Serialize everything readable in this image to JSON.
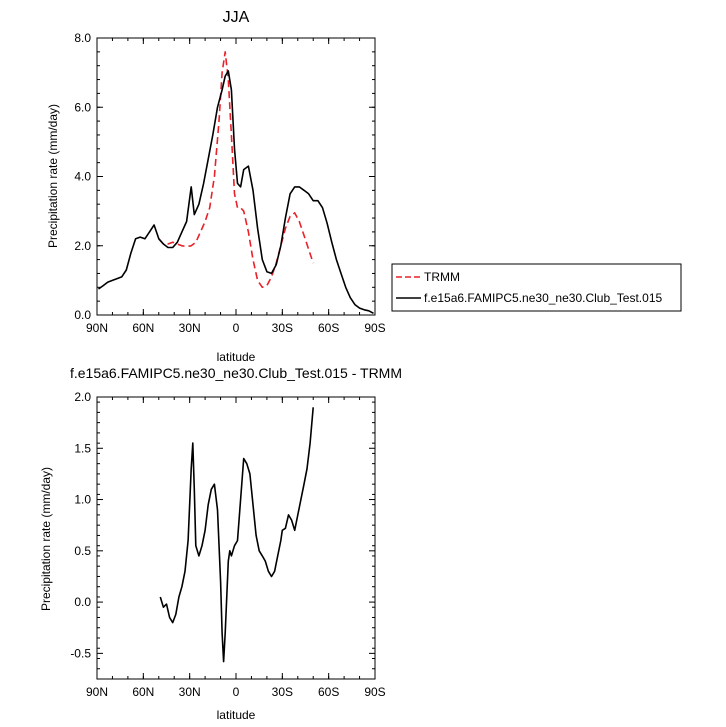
{
  "chart_data": [
    {
      "type": "line",
      "title": "JJA",
      "xlabel": "latitude",
      "ylabel": "Precipitation rate (mm/day)",
      "xlim": [
        90,
        -90
      ],
      "ylim": [
        0,
        8
      ],
      "xticks": [
        {
          "v": 90,
          "label": "90N"
        },
        {
          "v": 60,
          "label": "60N"
        },
        {
          "v": 30,
          "label": "30N"
        },
        {
          "v": 0,
          "label": "0"
        },
        {
          "v": -30,
          "label": "30S"
        },
        {
          "v": -60,
          "label": "60S"
        },
        {
          "v": -90,
          "label": "90S"
        }
      ],
      "yticks": [
        {
          "v": 0,
          "label": "0.0"
        },
        {
          "v": 2,
          "label": "2.0"
        },
        {
          "v": 4,
          "label": "4.0"
        },
        {
          "v": 6,
          "label": "6.0"
        },
        {
          "v": 8,
          "label": "8.0"
        }
      ],
      "legend": [
        "TRMM",
        "f.e15a6.FAMIPC5.ne30_ne30.Club_Test.015"
      ],
      "series": [
        {
          "name": "TRMM",
          "color": "#e8212a",
          "dash": true,
          "x": [
            50,
            47,
            44,
            41,
            38,
            35,
            32,
            29,
            26,
            23,
            20,
            17,
            14,
            11,
            9,
            7,
            5,
            3,
            1,
            -1,
            -3,
            -5,
            -8,
            -11,
            -14,
            -17,
            -20,
            -23,
            -26,
            -29,
            -32,
            -35,
            -38,
            -41,
            -44,
            -47,
            -50
          ],
          "y": [
            2.2,
            2.05,
            2.05,
            2.1,
            2.05,
            2.0,
            1.98,
            2.0,
            2.1,
            2.4,
            2.7,
            3.1,
            4.0,
            5.6,
            7.0,
            7.6,
            6.8,
            5.2,
            3.5,
            3.1,
            3.1,
            3.0,
            2.4,
            1.6,
            1.0,
            0.8,
            0.85,
            1.1,
            1.5,
            2.0,
            2.5,
            2.85,
            2.95,
            2.7,
            2.3,
            1.9,
            1.5
          ]
        },
        {
          "name": "f.e15a6.FAMIPC5.ne30_ne30.Club_Test.015",
          "color": "#000000",
          "dash": false,
          "x": [
            89,
            86,
            83,
            80,
            77,
            74,
            71,
            68,
            65,
            62,
            59,
            56,
            53,
            50,
            47,
            44,
            41,
            38,
            35,
            32,
            29,
            27,
            24,
            21,
            18,
            15,
            12,
            9,
            7,
            5,
            3,
            1,
            -1,
            -3,
            -5,
            -8,
            -11,
            -14,
            -17,
            -20,
            -23,
            -26,
            -29,
            -32,
            -35,
            -38,
            -41,
            -44,
            -47,
            -50,
            -53,
            -56,
            -59,
            -62,
            -65,
            -68,
            -71,
            -74,
            -77,
            -80,
            -83,
            -86,
            -89
          ],
          "y": [
            0.75,
            0.85,
            0.95,
            1.0,
            1.05,
            1.1,
            1.3,
            1.8,
            2.2,
            2.25,
            2.2,
            2.4,
            2.6,
            2.2,
            2.05,
            1.95,
            1.95,
            2.1,
            2.4,
            2.7,
            3.7,
            2.9,
            3.2,
            3.8,
            4.5,
            5.2,
            6.0,
            6.5,
            6.9,
            7.05,
            6.5,
            4.8,
            3.8,
            3.7,
            4.2,
            4.3,
            3.6,
            2.5,
            1.6,
            1.25,
            1.2,
            1.45,
            2.0,
            2.8,
            3.5,
            3.7,
            3.7,
            3.6,
            3.5,
            3.3,
            3.3,
            3.1,
            2.65,
            2.1,
            1.6,
            1.2,
            0.8,
            0.5,
            0.3,
            0.2,
            0.15,
            0.12,
            0.05
          ]
        }
      ]
    },
    {
      "type": "line",
      "title": "f.e15a6.FAMIPC5.ne30_ne30.Club_Test.015 - TRMM",
      "xlabel": "latitude",
      "ylabel": "Precipitation rate (mm/day)",
      "xlim": [
        90,
        -90
      ],
      "ylim": [
        -0.75,
        2.0
      ],
      "xticks": [
        {
          "v": 90,
          "label": "90N"
        },
        {
          "v": 60,
          "label": "60N"
        },
        {
          "v": 30,
          "label": "30N"
        },
        {
          "v": 0,
          "label": "0"
        },
        {
          "v": -30,
          "label": "30S"
        },
        {
          "v": -60,
          "label": "60S"
        },
        {
          "v": -90,
          "label": "90S"
        }
      ],
      "yticks": [
        {
          "v": -0.5,
          "label": "-0.5"
        },
        {
          "v": 0,
          "label": "0.0"
        },
        {
          "v": 0.5,
          "label": "0.5"
        },
        {
          "v": 1.0,
          "label": "1.0"
        },
        {
          "v": 1.5,
          "label": "1.5"
        },
        {
          "v": 2.0,
          "label": "2.0"
        }
      ],
      "series": [
        {
          "color": "#000000",
          "dash": false,
          "x": [
            49,
            47,
            45,
            43,
            41,
            39,
            37,
            35,
            33,
            31,
            29,
            28,
            27,
            26,
            24,
            22,
            20,
            18,
            16,
            14,
            12,
            10,
            9,
            8,
            7,
            5,
            4,
            3,
            1,
            -1,
            -3,
            -5,
            -7,
            -9,
            -11,
            -13,
            -15,
            -17,
            -19,
            -21,
            -23,
            -25,
            -27,
            -29,
            -30,
            -32,
            -34,
            -36,
            -38,
            -40,
            -42,
            -44,
            -46,
            -48,
            -50
          ],
          "y": [
            0.05,
            -0.05,
            -0.02,
            -0.15,
            -0.2,
            -0.12,
            0.05,
            0.15,
            0.3,
            0.6,
            1.3,
            1.55,
            1.1,
            0.55,
            0.45,
            0.55,
            0.7,
            0.95,
            1.1,
            1.15,
            0.9,
            0.2,
            -0.3,
            -0.58,
            -0.3,
            0.4,
            0.5,
            0.45,
            0.55,
            0.6,
            1.0,
            1.4,
            1.35,
            1.25,
            0.95,
            0.65,
            0.5,
            0.45,
            0.4,
            0.3,
            0.25,
            0.3,
            0.45,
            0.6,
            0.7,
            0.72,
            0.85,
            0.8,
            0.7,
            0.85,
            1.0,
            1.15,
            1.3,
            1.55,
            1.9
          ]
        }
      ]
    }
  ]
}
